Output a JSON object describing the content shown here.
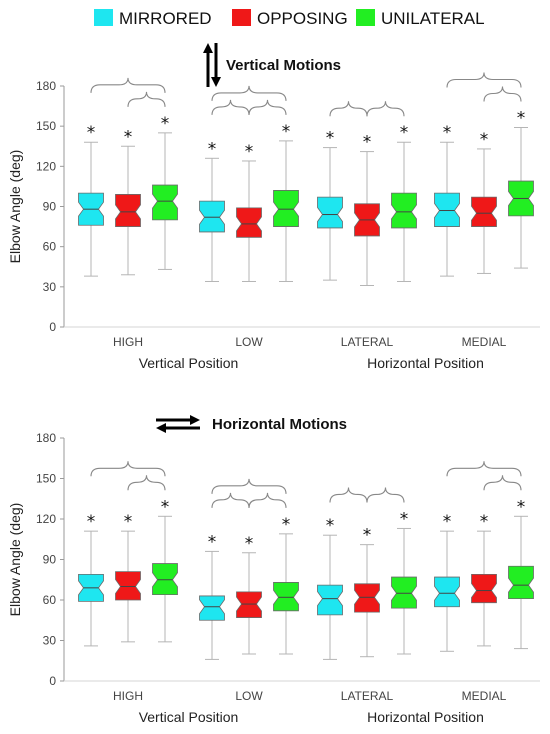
{
  "legend": [
    {
      "name": "MIRRORED",
      "color": "#1ee6f0"
    },
    {
      "name": "OPPOSING",
      "color": "#ef1818"
    },
    {
      "name": "UNILATERAL",
      "color": "#22ee22"
    }
  ],
  "chart_data": [
    {
      "type": "boxplot",
      "title": "Vertical Motions",
      "title_icon": "vertical-arrows-icon",
      "ylabel": "Elbow Angle (deg)",
      "ylim": [
        0,
        180
      ],
      "yticks": [
        0,
        30,
        60,
        90,
        120,
        150,
        180
      ],
      "categories": [
        "HIGH",
        "LOW",
        "LATERAL",
        "MEDIAL"
      ],
      "group_labels": [
        "Vertical Position",
        "Horizontal Position"
      ],
      "series": [
        {
          "name": "MIRRORED",
          "color": "#1ee6f0",
          "boxes": [
            {
              "min": 38,
              "q1": 76,
              "median": 88,
              "q3": 100,
              "max": 138
            },
            {
              "min": 34,
              "q1": 71,
              "median": 82,
              "q3": 94,
              "max": 126
            },
            {
              "min": 35,
              "q1": 74,
              "median": 84,
              "q3": 97,
              "max": 134
            },
            {
              "min": 38,
              "q1": 75,
              "median": 87,
              "q3": 100,
              "max": 138
            }
          ]
        },
        {
          "name": "OPPOSING",
          "color": "#ef1818",
          "boxes": [
            {
              "min": 39,
              "q1": 75,
              "median": 86,
              "q3": 99,
              "max": 135
            },
            {
              "min": 34,
              "q1": 67,
              "median": 77,
              "q3": 89,
              "max": 124
            },
            {
              "min": 31,
              "q1": 68,
              "median": 80,
              "q3": 92,
              "max": 131
            },
            {
              "min": 40,
              "q1": 75,
              "median": 85,
              "q3": 97,
              "max": 133
            }
          ]
        },
        {
          "name": "UNILATERAL",
          "color": "#22ee22",
          "boxes": [
            {
              "min": 43,
              "q1": 80,
              "median": 94,
              "q3": 106,
              "max": 145
            },
            {
              "min": 34,
              "q1": 75,
              "median": 88,
              "q3": 102,
              "max": 139
            },
            {
              "min": 34,
              "q1": 74,
              "median": 86,
              "q3": 100,
              "max": 138
            },
            {
              "min": 44,
              "q1": 83,
              "median": 96,
              "q3": 109,
              "max": 149
            }
          ]
        }
      ],
      "significance_star": "*"
    },
    {
      "type": "boxplot",
      "title": "Horizontal Motions",
      "title_icon": "horizontal-arrows-icon",
      "ylabel": "Elbow Angle (deg)",
      "ylim": [
        0,
        180
      ],
      "yticks": [
        0,
        30,
        60,
        90,
        120,
        150,
        180
      ],
      "categories": [
        "HIGH",
        "LOW",
        "LATERAL",
        "MEDIAL"
      ],
      "group_labels": [
        "Vertical Position",
        "Horizontal Position"
      ],
      "series": [
        {
          "name": "MIRRORED",
          "color": "#1ee6f0",
          "boxes": [
            {
              "min": 26,
              "q1": 59,
              "median": 69,
              "q3": 79,
              "max": 111
            },
            {
              "min": 16,
              "q1": 45,
              "median": 55,
              "q3": 63,
              "max": 96
            },
            {
              "min": 16,
              "q1": 49,
              "median": 61,
              "q3": 71,
              "max": 108
            },
            {
              "min": 22,
              "q1": 55,
              "median": 65,
              "q3": 77,
              "max": 111
            }
          ]
        },
        {
          "name": "OPPOSING",
          "color": "#ef1818",
          "boxes": [
            {
              "min": 29,
              "q1": 60,
              "median": 70,
              "q3": 81,
              "max": 111
            },
            {
              "min": 20,
              "q1": 47,
              "median": 57,
              "q3": 66,
              "max": 95
            },
            {
              "min": 18,
              "q1": 51,
              "median": 62,
              "q3": 72,
              "max": 101
            },
            {
              "min": 26,
              "q1": 58,
              "median": 67,
              "q3": 79,
              "max": 111
            }
          ]
        },
        {
          "name": "UNILATERAL",
          "color": "#22ee22",
          "boxes": [
            {
              "min": 29,
              "q1": 64,
              "median": 75,
              "q3": 87,
              "max": 122
            },
            {
              "min": 20,
              "q1": 52,
              "median": 62,
              "q3": 73,
              "max": 109
            },
            {
              "min": 20,
              "q1": 54,
              "median": 65,
              "q3": 77,
              "max": 113
            },
            {
              "min": 24,
              "q1": 61,
              "median": 71,
              "q3": 85,
              "max": 122
            }
          ]
        }
      ],
      "significance_star": "*"
    }
  ]
}
